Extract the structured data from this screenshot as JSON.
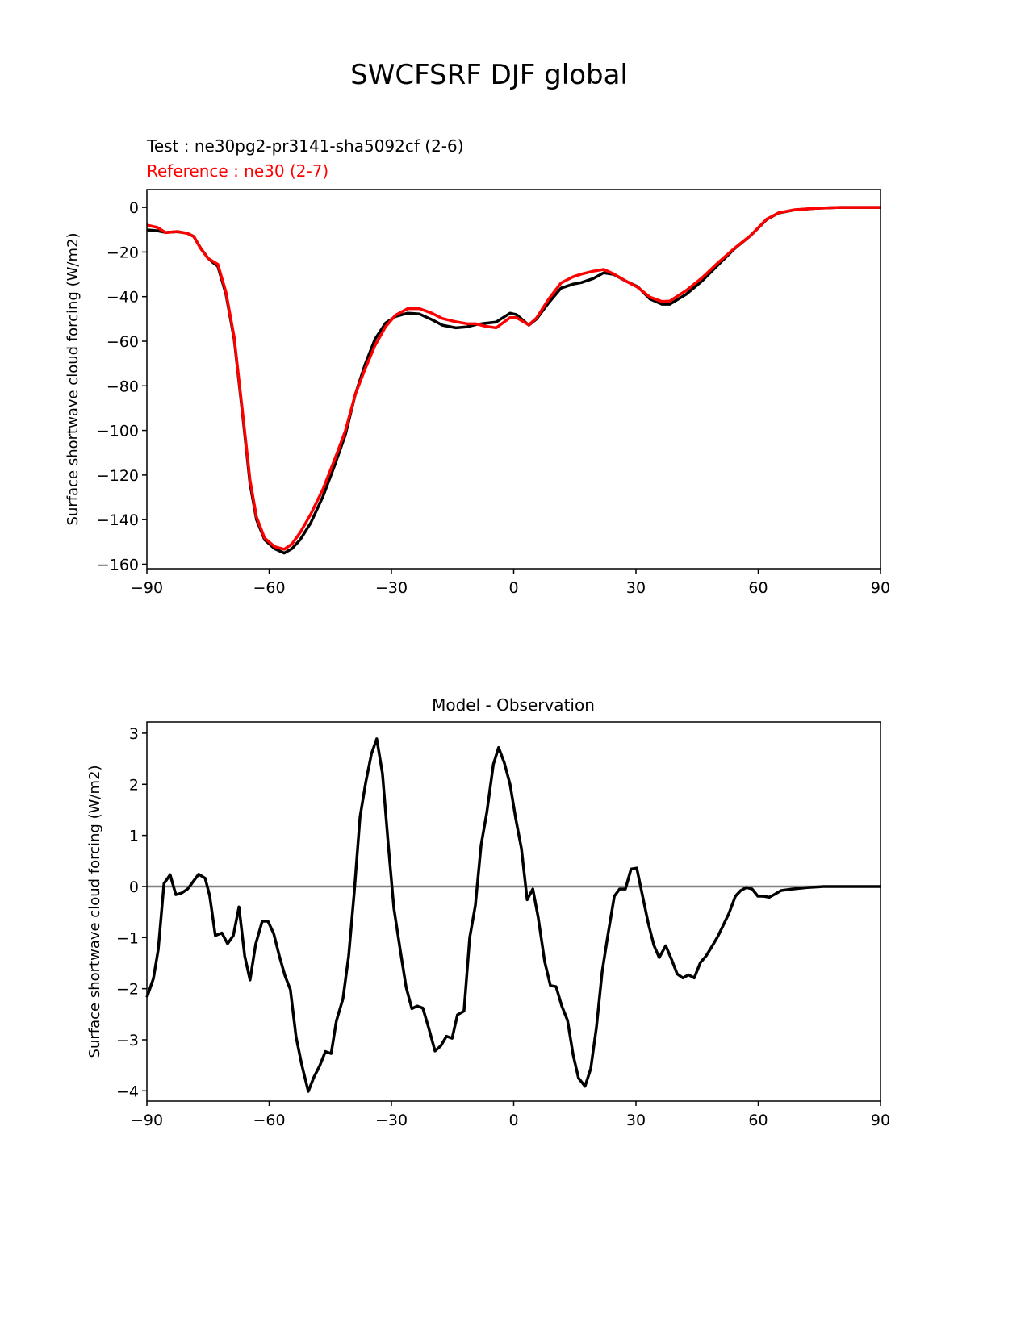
{
  "figure_title": "SWCFSRF DJF global",
  "chart_data": [
    {
      "type": "line",
      "test_label": "Test : ne30pg2-pr3141-sha5092cf (2-6)",
      "reference_label": "Reference : ne30 (2-7)",
      "ylabel": "Surface shortwave cloud forcing (W/m2)",
      "xlim": [
        -90,
        90
      ],
      "ylim": [
        -162,
        8
      ],
      "xticks": [
        -90,
        -60,
        -30,
        0,
        30,
        60,
        90
      ],
      "xtick_labels": [
        "−90",
        "−60",
        "−30",
        "0",
        "30",
        "60",
        "90"
      ],
      "yticks": [
        0,
        -20,
        -40,
        -60,
        -80,
        -100,
        -120,
        -140,
        -160
      ],
      "ytick_labels": [
        "0",
        "−20",
        "−40",
        "−60",
        "−80",
        "−100",
        "−120",
        "−140",
        "−160"
      ],
      "x": [
        -90,
        -87.4,
        -85.4,
        -82.5,
        -80.1,
        -78.5,
        -76.9,
        -75,
        -73.6,
        -72.6,
        -70.6,
        -68.6,
        -66.6,
        -64.7,
        -63.1,
        -61.1,
        -58.7,
        -56.3,
        -54.4,
        -52.4,
        -49.8,
        -46.8,
        -43.8,
        -41.3,
        -38.9,
        -36.5,
        -34,
        -31.4,
        -29,
        -26,
        -23.1,
        -20.1,
        -17.5,
        -14.2,
        -11.6,
        -9.2,
        -7.2,
        -4.3,
        -0.9,
        0.7,
        3.7,
        5.6,
        8.6,
        11.6,
        14.6,
        16.6,
        19.5,
        22.1,
        24.5,
        27.5,
        30.4,
        33.4,
        36.4,
        38.3,
        42.3,
        46.2,
        50.2,
        54.2,
        58.1,
        62.1,
        65,
        69,
        74,
        79.9,
        90
      ],
      "series": [
        {
          "name": "Test",
          "color": "#000000",
          "values": [
            -10.1,
            -10.5,
            -11.2,
            -10.9,
            -11.6,
            -13,
            -18,
            -22.8,
            -25,
            -26.4,
            -39,
            -59,
            -91.6,
            -124,
            -140,
            -149,
            -153,
            -155,
            -153,
            -149,
            -141.5,
            -129.6,
            -115,
            -102,
            -84,
            -70.6,
            -59,
            -51.8,
            -48.9,
            -47.4,
            -47.8,
            -50.3,
            -52.8,
            -54,
            -53.6,
            -52.5,
            -52,
            -51.4,
            -47.4,
            -48.1,
            -52.8,
            -50,
            -42.7,
            -36.2,
            -34.4,
            -33.7,
            -31.9,
            -29.3,
            -30,
            -33,
            -35.5,
            -41,
            -43.4,
            -43.4,
            -39,
            -33,
            -25.7,
            -18.5,
            -12.7,
            -5.4,
            -2.5,
            -1.1,
            -0.4,
            0,
            0
          ]
        },
        {
          "name": "Reference",
          "color": "#ff0000",
          "values": [
            -7.9,
            -9.0,
            -11.3,
            -10.8,
            -11.6,
            -13.1,
            -18.2,
            -22.8,
            -24.4,
            -25.5,
            -38,
            -58.1,
            -90.6,
            -122.2,
            -138.8,
            -148.3,
            -152.1,
            -153.3,
            -150.9,
            -145.8,
            -137.6,
            -126.3,
            -112.4,
            -100.2,
            -84,
            -72.6,
            -61.8,
            -53.4,
            -48.3,
            -45.4,
            -45.4,
            -47.4,
            -49.8,
            -51.3,
            -52.1,
            -52.2,
            -53.2,
            -54,
            -49.4,
            -49.4,
            -52.7,
            -49.6,
            -41.1,
            -33.9,
            -31.1,
            -29.9,
            -28.6,
            -27.8,
            -29.8,
            -33,
            -35.8,
            -40.2,
            -42.2,
            -42,
            -37.3,
            -31.6,
            -24.7,
            -18.3,
            -12.6,
            -5.2,
            -2.4,
            -1.05,
            -0.4,
            0,
            0
          ]
        }
      ]
    },
    {
      "type": "line",
      "title": "Model - Observation",
      "ylabel": "Surface shortwave cloud forcing (W/m2)",
      "xlim": [
        -90,
        90
      ],
      "ylim": [
        -4.2,
        3.22
      ],
      "xticks": [
        -90,
        -60,
        -30,
        0,
        30,
        60,
        90
      ],
      "xtick_labels": [
        "−90",
        "−60",
        "−30",
        "0",
        "30",
        "60",
        "90"
      ],
      "yticks": [
        3,
        2,
        1,
        0,
        -1,
        -2,
        -3,
        -4
      ],
      "ytick_labels": [
        "3",
        "2",
        "1",
        "0",
        "−1",
        "−2",
        "−3",
        "−4"
      ],
      "zero_line_color": "#808080",
      "x": [
        -90,
        -88.4,
        -87.2,
        -85.8,
        -84.3,
        -82.9,
        -81.5,
        -80,
        -77.3,
        -75.7,
        -74.6,
        -73.2,
        -71.6,
        -70.2,
        -68.8,
        -67.4,
        -66,
        -64.7,
        -63.3,
        -61.7,
        -60.3,
        -58.9,
        -57.5,
        -56.1,
        -54.8,
        -53.4,
        -52,
        -50.4,
        -49,
        -47.6,
        -46.2,
        -44.8,
        -43.5,
        -41.9,
        -40.5,
        -39.1,
        -37.7,
        -36.3,
        -34.9,
        -33.6,
        -32.2,
        -30.8,
        -29.4,
        -27.8,
        -26.4,
        -25,
        -23.7,
        -22.3,
        -20.9,
        -19.3,
        -17.9,
        -16.5,
        -15.1,
        -13.8,
        -12.2,
        -10.8,
        -9.4,
        -8,
        -6.6,
        -5,
        -3.7,
        -2.3,
        -0.9,
        0.5,
        1.9,
        3.3,
        4.7,
        6,
        7.6,
        9,
        10.4,
        11.8,
        13.2,
        14.6,
        15.9,
        17.5,
        18.9,
        20.3,
        21.7,
        23.1,
        24.7,
        26,
        27.4,
        28.8,
        30.2,
        31.6,
        33,
        34.4,
        35.7,
        37.3,
        38.7,
        40.1,
        41.5,
        42.9,
        44.3,
        45.8,
        47.2,
        48.6,
        50,
        51.4,
        52.8,
        54.4,
        55.7,
        57.1,
        58.5,
        59.9,
        61.3,
        62.7,
        64.1,
        65.6,
        68.4,
        72,
        76,
        90
      ],
      "series": [
        {
          "name": "Model - Observation",
          "color": "#000000",
          "values": [
            -2.17,
            -1.8,
            -1.23,
            0.06,
            0.23,
            -0.16,
            -0.13,
            -0.05,
            0.24,
            0.16,
            -0.18,
            -0.96,
            -0.91,
            -1.12,
            -0.96,
            -0.4,
            -1.36,
            -1.83,
            -1.13,
            -0.68,
            -0.68,
            -0.92,
            -1.36,
            -1.75,
            -2.02,
            -2.94,
            -3.49,
            -4.01,
            -3.73,
            -3.51,
            -3.23,
            -3.27,
            -2.63,
            -2.2,
            -1.36,
            -0.1,
            1.36,
            2.04,
            2.6,
            2.89,
            2.21,
            0.84,
            -0.42,
            -1.26,
            -1.97,
            -2.39,
            -2.34,
            -2.38,
            -2.76,
            -3.22,
            -3.12,
            -2.93,
            -2.97,
            -2.51,
            -2.44,
            -1.0,
            -0.37,
            0.81,
            1.45,
            2.39,
            2.72,
            2.42,
            2.0,
            1.33,
            0.74,
            -0.26,
            -0.05,
            -0.6,
            -1.47,
            -1.94,
            -1.96,
            -2.34,
            -2.62,
            -3.3,
            -3.75,
            -3.91,
            -3.57,
            -2.76,
            -1.67,
            -0.95,
            -0.19,
            -0.05,
            -0.05,
            0.34,
            0.36,
            -0.18,
            -0.71,
            -1.15,
            -1.39,
            -1.16,
            -1.42,
            -1.71,
            -1.79,
            -1.73,
            -1.79,
            -1.49,
            -1.36,
            -1.18,
            -0.99,
            -0.76,
            -0.53,
            -0.19,
            -0.08,
            -0.02,
            -0.05,
            -0.19,
            -0.19,
            -0.21,
            -0.15,
            -0.08,
            -0.05,
            -0.02,
            0,
            0
          ]
        }
      ]
    }
  ]
}
